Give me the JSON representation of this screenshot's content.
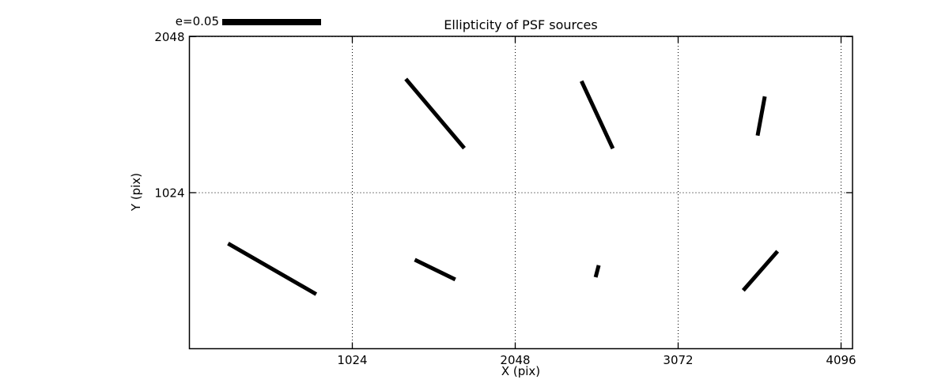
{
  "figure": {
    "title": "Ellipticity of PSF sources",
    "background_color": "#ffffff",
    "foreground_color": "#000000"
  },
  "legend": {
    "label": "e=0.05",
    "e_ref": 0.05
  },
  "chart_data": {
    "type": "scatter",
    "subtype": "ellipticity-whisker-quiver",
    "title": "Ellipticity of PSF sources",
    "xlabel": "X (pix)",
    "ylabel": "Y (pix)",
    "xlim": [
      0,
      4168
    ],
    "ylim": [
      0,
      2050
    ],
    "x_ticks": [
      1024,
      2048,
      3072,
      4096
    ],
    "y_ticks": [
      1024,
      2048
    ],
    "grid": true,
    "grid_style": "dotted",
    "legend_position": "upper-left-above-axes",
    "e_to_data_units": 12426,
    "whiskers": [
      {
        "x": 1544,
        "y": 1543,
        "e": 0.047,
        "angle_deg": -51
      },
      {
        "x": 2563,
        "y": 1535,
        "e": 0.039,
        "angle_deg": -66
      },
      {
        "x": 3594,
        "y": 1527,
        "e": 0.021,
        "angle_deg": 80
      },
      {
        "x": 520,
        "y": 524,
        "e": 0.052,
        "angle_deg": -31
      },
      {
        "x": 1544,
        "y": 519,
        "e": 0.023,
        "angle_deg": -27
      },
      {
        "x": 2563,
        "y": 508,
        "e": 0.0065,
        "angle_deg": 76
      },
      {
        "x": 3589,
        "y": 511,
        "e": 0.027,
        "angle_deg": 50
      }
    ]
  }
}
